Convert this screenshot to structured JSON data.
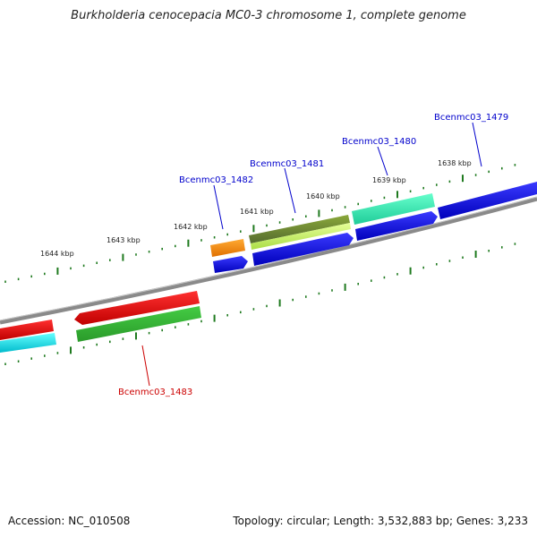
{
  "title": "Burkholderia cenocepacia MC0-3 chromosome 1, complete genome",
  "footer": {
    "accession": "Accession: NC_010508",
    "summary": "Topology: circular; Length: 3,532,883 bp; Genes: 3,233"
  },
  "ticks": [
    {
      "label": "1638 kbp",
      "kbp": 1638
    },
    {
      "label": "1639 kbp",
      "kbp": 1639
    },
    {
      "label": "1640 kbp",
      "kbp": 1640
    },
    {
      "label": "1641 kbp",
      "kbp": 1641
    },
    {
      "label": "1642 kbp",
      "kbp": 1642
    },
    {
      "label": "1643 kbp",
      "kbp": 1643
    },
    {
      "label": "1644 kbp",
      "kbp": 1644
    }
  ],
  "genes": [
    {
      "label": "Bcenmc03_1479",
      "label_color": "#0000cc"
    },
    {
      "label": "Bcenmc03_1480",
      "label_color": "#0000cc"
    },
    {
      "label": "Bcenmc03_1481",
      "label_color": "#0000cc"
    },
    {
      "label": "Bcenmc03_1482",
      "label_color": "#0000cc"
    },
    {
      "label": "Bcenmc03_1483",
      "label_color": "#cc0000"
    }
  ],
  "colors": {
    "backbone": "#8a8a8a",
    "tick": "#1f7a1f",
    "cds_blue": "#0000ee",
    "cds_red": "#ee0000",
    "cds_cyan": "#00e5ee",
    "cds_green": "#33bb33",
    "cds_orange": "#ff8c00",
    "cds_olive": "#6b8e23",
    "cds_lime": "#ccff66",
    "cds_teal": "#33eeaa"
  }
}
